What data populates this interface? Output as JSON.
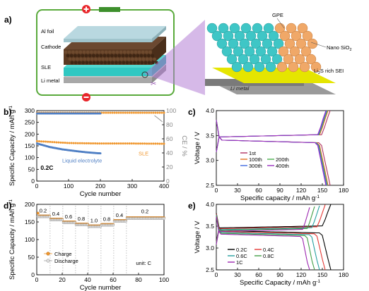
{
  "panel_a": {
    "letter": "a)",
    "labels": {
      "al_foil": "Al foil",
      "cathode": "Cathode",
      "sle": "SLE",
      "li_metal": "Li metal",
      "gpe": "GPE",
      "nano_sio2": "Nano SiO",
      "nano_sio2_sub": "2",
      "sei_pre": "Li",
      "sei_sub": "2",
      "sei_post": "S rich SEI",
      "li_metal_zoom": "Li metal"
    },
    "colors": {
      "frame": "#5aaa3c",
      "plus": "#e8252a",
      "minus": "#e8252a",
      "cathode": "#5b3a22",
      "sle": "#30c8c2",
      "zoom_beam": "#9b59b6",
      "sei": "#e5e500",
      "sphere_cyan": "#3fc6c6",
      "sphere_orange": "#f0a868"
    }
  },
  "chart_data": [
    {
      "panel": "b)",
      "type": "scatter",
      "xlabel": "Cycle number",
      "ylabel": "Specific Capacity / mAh g",
      "ylabel_sup": "-1",
      "ylabel_right": "CE / %",
      "xlim": [
        0,
        400
      ],
      "ylim": [
        0,
        300
      ],
      "ylim_right": [
        0,
        100
      ],
      "xticks": [
        "0",
        "100",
        "200",
        "300",
        "400"
      ],
      "yticks": [
        "0",
        "50",
        "100",
        "150",
        "200",
        "250",
        "300"
      ],
      "yticks_right": [
        "0",
        "20",
        "40",
        "60",
        "80",
        "100"
      ],
      "annotation": "0.2C",
      "series": [
        {
          "name": "SLE",
          "color": "#f0962c",
          "axis": "left",
          "x_start": 1,
          "x_end": 400,
          "values_y": [
            170,
            162,
            160,
            160,
            159
          ]
        },
        {
          "name": "Liquid electrolyte",
          "color": "#4f7fc4",
          "axis": "left",
          "x_start": 1,
          "x_end": 200,
          "values_y": [
            160,
            145,
            135,
            128,
            122,
            118
          ]
        },
        {
          "color": "#f0962c",
          "axis": "right",
          "x_start": 1,
          "x_end": 400,
          "ce": 97
        },
        {
          "color": "#4f7fc4",
          "axis": "right",
          "x_start": 1,
          "x_end": 200,
          "ce": 96
        }
      ]
    },
    {
      "panel": "c)",
      "type": "line",
      "xlabel": "Specific capacity / mAh g",
      "xlabel_sup": "-1",
      "ylabel": "Voltage / V",
      "xlim": [
        0,
        180
      ],
      "ylim": [
        2.5,
        4.0
      ],
      "xticks": [
        "0",
        "30",
        "60",
        "90",
        "120",
        "150",
        "180"
      ],
      "yticks": [
        "2.5",
        "3.0",
        "3.5",
        "4.0"
      ],
      "series": [
        {
          "name": "1st",
          "color": "#b03060",
          "capacity": 161
        },
        {
          "name": "100th",
          "color": "#e07020",
          "capacity": 158
        },
        {
          "name": "200th",
          "color": "#4caf50",
          "capacity": 157
        },
        {
          "name": "300th",
          "color": "#4169e1",
          "capacity": 156
        },
        {
          "name": "400th",
          "color": "#9b30c0",
          "capacity": 155
        }
      ]
    },
    {
      "panel": "d)",
      "type": "scatter",
      "xlabel": "Cycle number",
      "ylabel": "Specific Capacity / mAh g",
      "ylabel_sup": "-1",
      "xlim": [
        0,
        100
      ],
      "ylim": [
        0,
        200
      ],
      "xticks": [
        "0",
        "20",
        "40",
        "60",
        "80",
        "100"
      ],
      "yticks": [
        "0",
        "50",
        "100",
        "150",
        "200"
      ],
      "unit_note": "unit: C",
      "rate_labels": [
        {
          "text": "0.2",
          "x": 5
        },
        {
          "text": "0.4",
          "x": 15
        },
        {
          "text": "0.6",
          "x": 25
        },
        {
          "text": "0.8",
          "x": 35
        },
        {
          "text": "1.0",
          "x": 45
        },
        {
          "text": "0.8",
          "x": 55
        },
        {
          "text": "0.4",
          "x": 65
        },
        {
          "text": "0.2",
          "x": 85
        }
      ],
      "segments": [
        {
          "from": 1,
          "to": 10,
          "value": 165
        },
        {
          "from": 11,
          "to": 20,
          "value": 156
        },
        {
          "from": 21,
          "to": 30,
          "value": 148
        },
        {
          "from": 31,
          "to": 40,
          "value": 142
        },
        {
          "from": 41,
          "to": 50,
          "value": 137
        },
        {
          "from": 51,
          "to": 60,
          "value": 141
        },
        {
          "from": 61,
          "to": 70,
          "value": 152
        },
        {
          "from": 71,
          "to": 100,
          "value": 160
        }
      ],
      "series": [
        {
          "name": "Charge",
          "color": "#f0962c"
        },
        {
          "name": "Discharge",
          "color": "#a0a0a0"
        }
      ]
    },
    {
      "panel": "e)",
      "type": "line",
      "xlabel": "Specific Capacity / mAh g",
      "xlabel_sup": "-1",
      "ylabel": "Voltage / V",
      "xlim": [
        0,
        180
      ],
      "ylim": [
        2.5,
        4.0
      ],
      "xticks": [
        "0",
        "30",
        "60",
        "90",
        "120",
        "150",
        "180"
      ],
      "yticks": [
        "2.5",
        "3.0",
        "3.5",
        "4.0"
      ],
      "series": [
        {
          "name": "0.2C",
          "color": "#000000",
          "capacity": 162,
          "plateau": 3.42
        },
        {
          "name": "0.4C",
          "color": "#e53935",
          "capacity": 154,
          "plateau": 3.4
        },
        {
          "name": "0.6C",
          "color": "#26a0a0",
          "capacity": 146,
          "plateau": 3.38
        },
        {
          "name": "0.8C",
          "color": "#43a047",
          "capacity": 139,
          "plateau": 3.36
        },
        {
          "name": "1C",
          "color": "#9c27b0",
          "capacity": 132,
          "plateau": 3.34
        }
      ]
    }
  ]
}
